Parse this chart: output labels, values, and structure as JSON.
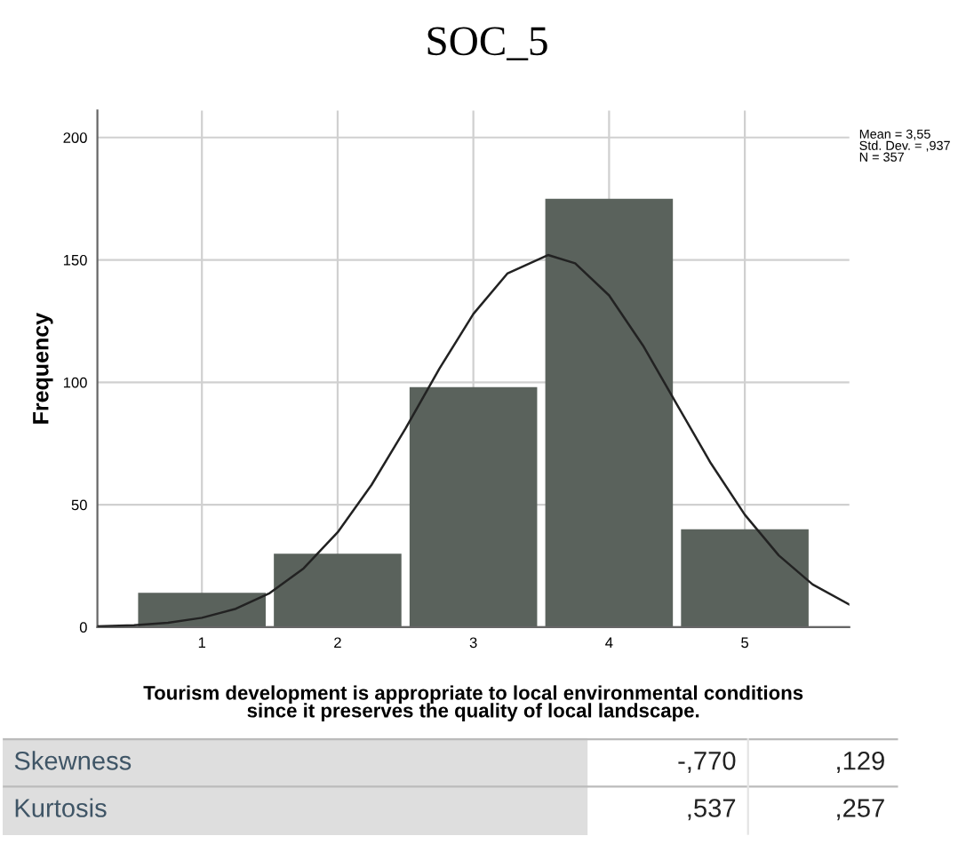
{
  "chart_data": {
    "type": "histogram",
    "title": "SOC_5",
    "xlabel": "Tourism development is appropriate to local environmental conditions\nsince it preserves the quality of local landscape.",
    "ylabel": "Frequency",
    "bins": [
      0.5,
      1.5,
      2.5,
      3.5,
      4.5,
      5.5
    ],
    "values": [
      14,
      30,
      98,
      175,
      40
    ],
    "color": "#5a625c",
    "series": [
      {
        "type": "line",
        "color": "#222222",
        "x": [
          0.23,
          0.5,
          0.75,
          1.0,
          1.25,
          1.5,
          1.75,
          2.0,
          2.25,
          2.5,
          2.75,
          3.0,
          3.25,
          3.55,
          3.75,
          4.0,
          4.25,
          4.5,
          4.75,
          5.0,
          5.25,
          5.5,
          5.77
        ],
        "values": [
          0.3,
          0.8,
          1.8,
          3.8,
          7.5,
          13.9,
          24,
          38.7,
          58.1,
          81.1,
          105.6,
          127.9,
          144.4,
          152,
          148.6,
          135.5,
          115,
          90.9,
          66.9,
          45.9,
          29.3,
          17.4,
          9.2
        ]
      }
    ],
    "xlim": [
      0.23,
      5.77
    ],
    "xticks": [
      1,
      2,
      3,
      4,
      5
    ],
    "ylim": [
      0,
      211
    ],
    "yticks": [
      0,
      50,
      100,
      150,
      200
    ],
    "grid": true,
    "annotations": [
      "Mean = 3,55\nStd. Dev. = ,937\nN = 357",
      "Skewness",
      "-,770",
      ",129",
      "Kurtosis",
      ",537",
      ",257"
    ]
  }
}
